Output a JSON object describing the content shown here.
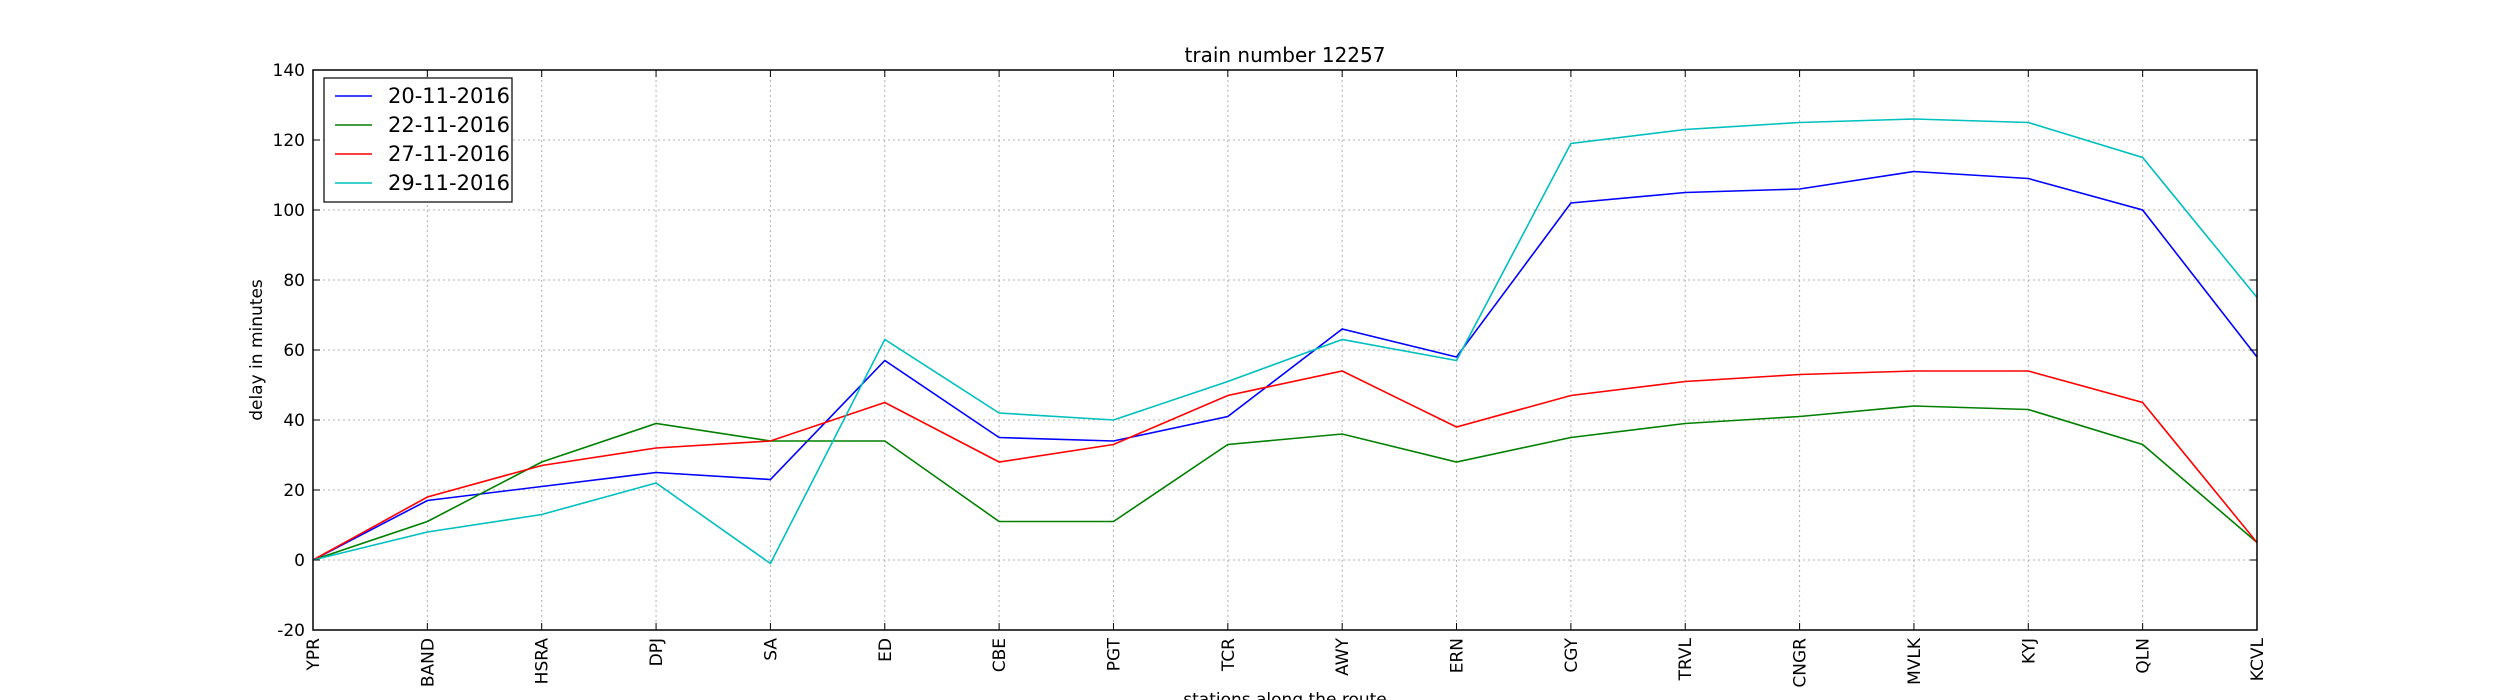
{
  "chart_data": {
    "type": "line",
    "title": "train number 12257",
    "xlabel": "stations along the route",
    "ylabel": "delay in minutes",
    "ylim": [
      -20,
      140
    ],
    "yticks": [
      -20,
      0,
      20,
      40,
      60,
      80,
      100,
      120,
      140
    ],
    "grid": true,
    "legend_position": "top-left",
    "categories": [
      "YPR",
      "BAND",
      "HSRA",
      "DPJ",
      "SA",
      "ED",
      "CBE",
      "PGT",
      "TCR",
      "AWY",
      "ERN",
      "CGY",
      "TRVL",
      "CNGR",
      "MVLK",
      "KYJ",
      "QLN",
      "KCVL"
    ],
    "series": [
      {
        "name": "20-11-2016",
        "color": "#0000ff",
        "values": [
          0,
          17,
          21,
          25,
          23,
          57,
          35,
          34,
          41,
          66,
          58,
          102,
          105,
          106,
          111,
          109,
          100,
          58
        ]
      },
      {
        "name": "22-11-2016",
        "color": "#008000",
        "values": [
          0,
          11,
          28,
          39,
          34,
          34,
          11,
          11,
          33,
          36,
          28,
          35,
          39,
          41,
          44,
          43,
          33,
          5
        ]
      },
      {
        "name": "27-11-2016",
        "color": "#ff0000",
        "values": [
          0,
          18,
          27,
          32,
          34,
          45,
          28,
          33,
          47,
          54,
          38,
          47,
          51,
          53,
          54,
          54,
          45,
          5
        ]
      },
      {
        "name": "29-11-2016",
        "color": "#00bfbf",
        "values": [
          0,
          8,
          13,
          22,
          -1,
          63,
          42,
          40,
          51,
          63,
          57,
          119,
          123,
          125,
          126,
          125,
          115,
          75
        ]
      }
    ]
  }
}
